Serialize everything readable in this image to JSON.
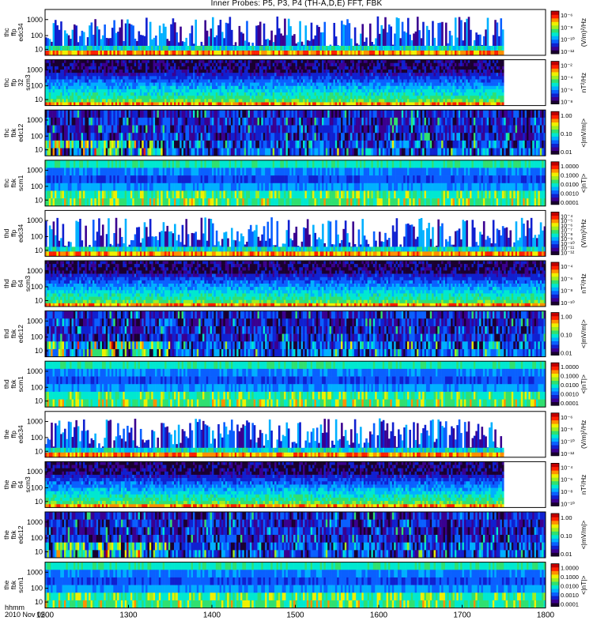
{
  "title": "Inner Probes: P5, P3, P4 (TH-A,D,E) FFT, FBK",
  "footer": {
    "time_label": "hhmm",
    "date_label": "2010 Nov 05"
  },
  "colors": {
    "palette": [
      "#1a0030",
      "#3a0090",
      "#1020d0",
      "#0a60ff",
      "#00b0ff",
      "#00e8d0",
      "#30e070",
      "#a0ee20",
      "#f0f000",
      "#ff9000",
      "#ff2000",
      "#c00000"
    ],
    "frame": "#000000",
    "background": "#ffffff"
  },
  "chart_data": {
    "type": "heatmap",
    "x_axis": {
      "label": "hhmm",
      "range": [
        1200,
        1800
      ],
      "ticks": [
        "1200",
        "1300",
        "1400",
        "1500",
        "1600",
        "1700",
        "1800"
      ]
    },
    "panels": [
      {
        "label": [
          "thc",
          "ffp",
          "edc34"
        ],
        "yscale": "log",
        "yticks": [
          "1000",
          "100",
          "10"
        ],
        "colorbar": {
          "label": "(V/m)²/Hz",
          "ticks": [
            "10⁻⁶",
            "10⁻⁸",
            "10⁻¹⁰",
            "10⁻¹²"
          ]
        },
        "data_end": 1750,
        "style": "sparse"
      },
      {
        "label": [
          "thc",
          "ffp",
          "32",
          "scm3"
        ],
        "yscale": "log",
        "yticks": [
          "1000",
          "100",
          "10"
        ],
        "colorbar": {
          "label": "nT²/Hz",
          "ticks": [
            "10⁻²",
            "10⁻⁴",
            "10⁻⁶",
            "10⁻⁸"
          ]
        },
        "data_end": 1750,
        "style": "layered"
      },
      {
        "label": [
          "thc",
          "fbk",
          "edc12"
        ],
        "yscale": "log",
        "yticks": [
          "1000",
          "100",
          "10"
        ],
        "colorbar": {
          "label": "<|mV/m|>",
          "ticks": [
            "1.00",
            "0.10",
            "0.01"
          ]
        },
        "data_end": 1800,
        "style": "fbk"
      },
      {
        "label": [
          "thc",
          "fbk",
          "scm1"
        ],
        "yscale": "log",
        "yticks": [
          "1000",
          "100",
          "10"
        ],
        "colorbar": {
          "label": "<|nT|>",
          "ticks": [
            "1.0000",
            "0.1000",
            "0.0100",
            "0.0010",
            "0.0001"
          ]
        },
        "data_end": 1800,
        "style": "scm"
      },
      {
        "label": [
          "thd",
          "ffp",
          "edc34"
        ],
        "yscale": "log",
        "yticks": [
          "1000",
          "100",
          "10"
        ],
        "colorbar": {
          "label": "(V/m)²/Hz",
          "ticks": [
            "10⁻⁴",
            "10⁻⁵",
            "10⁻⁶",
            "10⁻⁷",
            "10⁻⁸",
            "10⁻⁹",
            "10⁻¹⁰",
            "10⁻¹¹",
            "10⁻¹²"
          ]
        },
        "data_end": 1800,
        "style": "sparse"
      },
      {
        "label": [
          "thd",
          "ffp",
          "64",
          "scm3"
        ],
        "yscale": "log",
        "yticks": [
          "1000",
          "100",
          "10"
        ],
        "colorbar": {
          "label": "nT²/Hz",
          "ticks": [
            "10⁻⁴",
            "10⁻⁶",
            "10⁻⁸",
            "10⁻¹⁰"
          ]
        },
        "data_end": 1800,
        "style": "layered"
      },
      {
        "label": [
          "thd",
          "fbk",
          "edc12"
        ],
        "yscale": "log",
        "yticks": [
          "1000",
          "100",
          "10"
        ],
        "colorbar": {
          "label": "<|mV/m|>",
          "ticks": [
            "1.00",
            "0.10",
            "0.01"
          ]
        },
        "data_end": 1800,
        "style": "fbk"
      },
      {
        "label": [
          "thd",
          "fbk",
          "scm1"
        ],
        "yscale": "log",
        "yticks": [
          "1000",
          "100",
          "10"
        ],
        "colorbar": {
          "label": "<|nT|>",
          "ticks": [
            "1.0000",
            "0.1000",
            "0.0100",
            "0.0010",
            "0.0001"
          ]
        },
        "data_end": 1800,
        "style": "scm"
      },
      {
        "label": [
          "the",
          "ffp",
          "edc34"
        ],
        "yscale": "log",
        "yticks": [
          "1000",
          "100",
          "10"
        ],
        "colorbar": {
          "label": "(V/m)²/Hz",
          "ticks": [
            "10⁻⁶",
            "10⁻⁸",
            "10⁻¹⁰",
            "10⁻¹²"
          ]
        },
        "data_end": 1750,
        "style": "sparse"
      },
      {
        "label": [
          "the",
          "ffp",
          "64",
          "scm3"
        ],
        "yscale": "log",
        "yticks": [
          "1000",
          "100",
          "10"
        ],
        "colorbar": {
          "label": "nT²/Hz",
          "ticks": [
            "10⁻⁴",
            "10⁻⁶",
            "10⁻⁸",
            "10⁻¹⁰"
          ]
        },
        "data_end": 1750,
        "style": "layered"
      },
      {
        "label": [
          "the",
          "fbk",
          "edc12"
        ],
        "yscale": "log",
        "yticks": [
          "1000",
          "100",
          "10"
        ],
        "colorbar": {
          "label": "<|mV/m|>",
          "ticks": [
            "1.00",
            "0.10",
            "0.01"
          ]
        },
        "data_end": 1800,
        "style": "fbk"
      },
      {
        "label": [
          "the",
          "fbk",
          "scm1"
        ],
        "yscale": "log",
        "yticks": [
          "1000",
          "100",
          "10"
        ],
        "colorbar": {
          "label": "<|nT|>",
          "ticks": [
            "1.0000",
            "0.1000",
            "0.0100",
            "0.0010",
            "0.0001"
          ]
        },
        "data_end": 1800,
        "style": "scm"
      }
    ]
  }
}
